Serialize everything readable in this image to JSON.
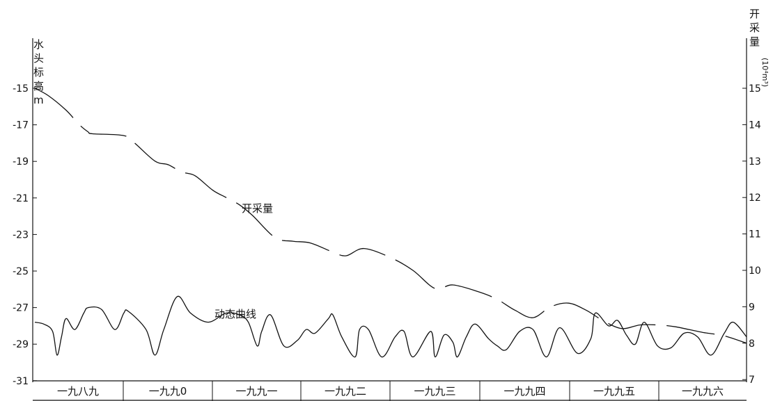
{
  "chart_data": {
    "type": "line",
    "xlabel": "",
    "categories": [
      "一九八九",
      "一九九0",
      "一九九一",
      "一九九二",
      "一九九三",
      "一九九四",
      "一九九五",
      "一九九六"
    ],
    "y_left": {
      "label_chars": [
        "水",
        "头",
        "标",
        "高",
        "m"
      ],
      "ylim": [
        -31,
        -13
      ],
      "ticks": [
        -15,
        -17,
        -19,
        -21,
        -23,
        -25,
        -27,
        -29,
        -31
      ]
    },
    "y_right": {
      "label_chars": [
        "开",
        "采",
        "量",
        "(10⁴m³)"
      ],
      "ylim": [
        7,
        15.7
      ],
      "ticks": [
        15,
        14,
        13,
        12,
        11,
        10,
        9,
        8,
        7
      ]
    },
    "grid": false,
    "series": [
      {
        "name": "开采量",
        "axis": "right",
        "style": "dashed",
        "x": [
          0.0,
          0.15,
          0.35,
          0.5,
          0.6,
          0.65,
          1.0,
          1.12,
          1.35,
          1.5,
          1.65,
          1.8,
          2.0,
          2.15,
          2.3,
          2.45,
          2.7,
          2.9,
          3.1,
          3.35,
          3.5,
          3.7,
          4.0,
          4.25,
          4.5,
          4.7,
          5.0,
          5.2,
          5.4,
          5.6,
          5.8,
          6.0,
          6.2,
          6.4,
          6.6,
          6.8,
          7.0,
          7.2,
          7.5,
          7.75,
          8.0
        ],
        "y": [
          15.0,
          14.8,
          14.4,
          14.0,
          13.8,
          13.75,
          13.7,
          13.5,
          13.0,
          12.9,
          12.7,
          12.6,
          12.2,
          12.0,
          11.8,
          11.5,
          10.9,
          10.8,
          10.75,
          10.5,
          10.4,
          10.6,
          10.35,
          10.0,
          9.5,
          9.6,
          9.4,
          9.2,
          8.9,
          8.7,
          9.0,
          9.1,
          8.9,
          8.6,
          8.4,
          8.5,
          8.5,
          8.45,
          8.3,
          8.2,
          8.0
        ]
      },
      {
        "name": "动态曲线",
        "axis": "left",
        "style": "solid",
        "x": [
          0.0,
          0.1,
          0.2,
          0.25,
          0.3,
          0.35,
          0.45,
          0.55,
          0.6,
          0.75,
          0.9,
          1.0,
          1.05,
          1.25,
          1.35,
          1.45,
          1.6,
          1.75,
          1.95,
          2.15,
          2.3,
          2.4,
          2.5,
          2.55,
          2.65,
          2.8,
          2.95,
          3.05,
          3.15,
          3.3,
          3.35,
          3.45,
          3.6,
          3.65,
          3.75,
          3.9,
          4.05,
          4.15,
          4.25,
          4.45,
          4.5,
          4.6,
          4.7,
          4.75,
          4.85,
          4.95,
          5.1,
          5.2,
          5.3,
          5.45,
          5.6,
          5.75,
          5.9,
          6.1,
          6.25,
          6.3,
          6.45,
          6.55,
          6.65,
          6.75,
          6.85,
          7.0,
          7.15,
          7.3,
          7.45,
          7.6,
          7.75,
          7.85,
          8.0
        ],
        "y": [
          -27.8,
          -27.9,
          -28.3,
          -29.6,
          -28.6,
          -27.6,
          -28.2,
          -27.3,
          -27.0,
          -27.1,
          -28.2,
          -27.3,
          -27.2,
          -28.2,
          -29.6,
          -28.2,
          -26.4,
          -27.3,
          -27.8,
          -27.3,
          -27.4,
          -27.8,
          -29.1,
          -28.3,
          -27.4,
          -29.1,
          -28.8,
          -28.2,
          -28.4,
          -27.6,
          -27.4,
          -28.6,
          -29.7,
          -28.2,
          -28.2,
          -29.7,
          -28.6,
          -28.3,
          -29.7,
          -28.3,
          -29.7,
          -28.5,
          -28.9,
          -29.7,
          -28.6,
          -27.9,
          -28.7,
          -29.1,
          -29.3,
          -28.3,
          -28.2,
          -29.7,
          -28.1,
          -29.5,
          -28.7,
          -27.3,
          -28.0,
          -27.7,
          -28.5,
          -29.0,
          -27.8,
          -29.1,
          -29.2,
          -28.4,
          -28.6,
          -29.6,
          -28.4,
          -27.8,
          -28.6
        ]
      }
    ],
    "annotations": [
      {
        "text": "开采量"
      },
      {
        "text": "动态曲线"
      }
    ]
  }
}
